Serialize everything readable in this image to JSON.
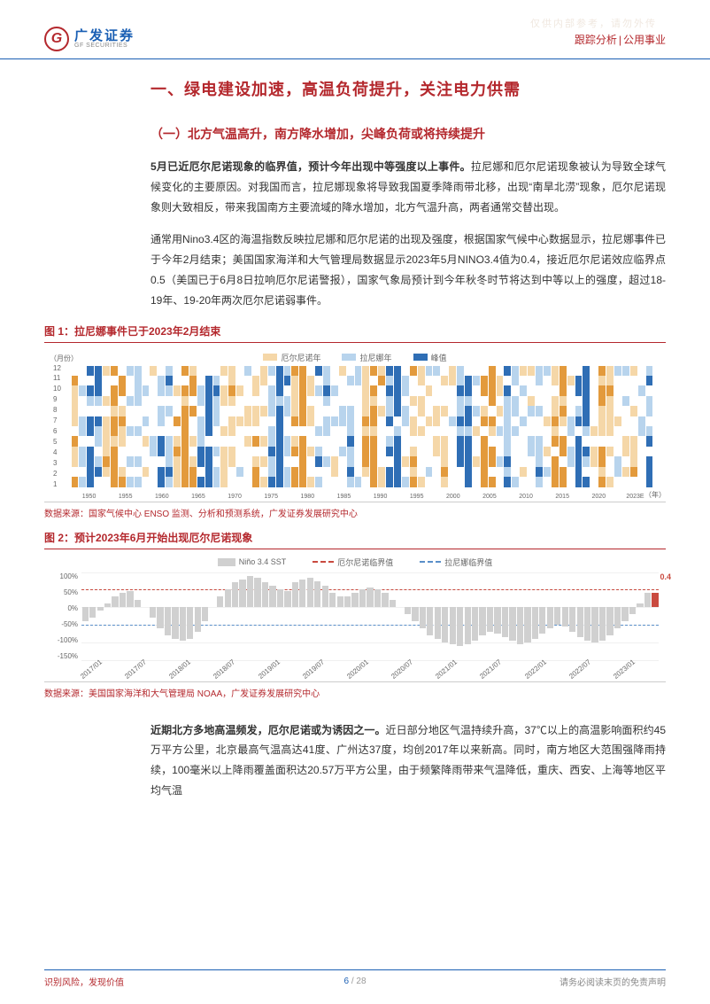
{
  "watermark": "仅供内部参考，请勿外传",
  "header": {
    "logo_cn": "广发证券",
    "logo_en": "GF SECURITIES",
    "logo_letter": "G",
    "category": "跟踪分析",
    "sector": "公用事业"
  },
  "h1": "一、绿电建设加速，高温负荷提升，关注电力供需",
  "h2": "（一）北方气温高升，南方降水增加，尖峰负荷或将持续提升",
  "p1_bold": "5月已近厄尔尼诺现象的临界值，预计今年出现中等强度以上事件。",
  "p1": "拉尼娜和厄尔尼诺现象被认为导致全球气候变化的主要原因。对我国而言，拉尼娜现象将导致我国夏季降雨带北移，出现“南旱北涝”现象，厄尔尼诺现象则大致相反，带来我国南方主要流域的降水增加，北方气温升高，两者通常交替出现。",
  "p2": "通常用Nino3.4区的海温指数反映拉尼娜和厄尔尼诺的出现及强度，根据国家气候中心数据显示，拉尼娜事件已于今年2月结束；美国国家海洋和大气管理局数据显示2023年5月NINO3.4值为0.4，接近厄尔尼诺效应临界点0.5（美国已于6月8日拉响厄尔尼诺警报），国家气象局预计到今年秋冬时节将达到中等以上的强度，超过18-19年、19-20年两次厄尔尼诺弱事件。",
  "fig1": {
    "title": "图 1：拉尼娜事件已于2023年2月结束",
    "ylabel": "（月份）",
    "xlabel": "（年）",
    "yticks": [
      "1",
      "2",
      "3",
      "4",
      "5",
      "6",
      "7",
      "8",
      "9",
      "10",
      "11",
      "12"
    ],
    "xticks": [
      "1950",
      "1955",
      "1960",
      "1965",
      "1970",
      "1975",
      "1980",
      "1985",
      "1990",
      "1995",
      "2000",
      "2005",
      "2010",
      "2015",
      "2020",
      "2023E"
    ],
    "legend": [
      {
        "label": "厄尔尼诺年",
        "color": "#f5d7a8"
      },
      {
        "label": "拉尼娜年",
        "color": "#b8d4ed"
      },
      {
        "label": "峰值",
        "color": "#2f6eb5"
      }
    ],
    "colors": {
      "none": "#ffffff",
      "en_light": "#f5d7a8",
      "en_dark": "#e39a3c",
      "ln_light": "#b8d4ed",
      "ln_dark": "#2f6eb5"
    },
    "source": "数据来源：国家气候中心 ENSO 监测、分析和预测系统，广发证券发展研究中心"
  },
  "fig2": {
    "title": "图 2：预计2023年6月开始出现厄尔尼诺现象",
    "legend": [
      {
        "label": "Niño 3.4 SST",
        "type": "box",
        "color": "#d0d0d0"
      },
      {
        "label": "厄尔尼诺临界值",
        "type": "line",
        "color": "#c94a3f"
      },
      {
        "label": "拉尼娜临界值",
        "type": "line",
        "color": "#5a8fc9"
      }
    ],
    "yticks": [
      "100%",
      "50%",
      "0%",
      "-50%",
      "-100%",
      "-150%"
    ],
    "ylim": [
      -150,
      100
    ],
    "threshold_en": 50,
    "threshold_ln": -50,
    "xticks": [
      "2017/01",
      "2017/07",
      "2018/01",
      "2018/07",
      "2019/01",
      "2019/07",
      "2020/01",
      "2020/07",
      "2021/01",
      "2021/07",
      "2022/01",
      "2022/07",
      "2023/01"
    ],
    "latest_label": "0.4",
    "latest_color": "#c94a3f",
    "bar_color": "#d0d0d0",
    "values": [
      -40,
      -30,
      -10,
      10,
      30,
      40,
      45,
      20,
      0,
      -30,
      -60,
      -80,
      -90,
      -95,
      -90,
      -70,
      -40,
      0,
      30,
      50,
      70,
      80,
      90,
      85,
      70,
      60,
      50,
      45,
      70,
      80,
      85,
      75,
      60,
      40,
      30,
      30,
      40,
      50,
      55,
      50,
      40,
      20,
      0,
      -20,
      -40,
      -60,
      -80,
      -90,
      -100,
      -105,
      -110,
      -105,
      -95,
      -80,
      -70,
      -75,
      -85,
      -95,
      -105,
      -100,
      -90,
      -75,
      -60,
      -50,
      -55,
      -70,
      -85,
      -95,
      -100,
      -95,
      -80,
      -60,
      -40,
      -20,
      10,
      40,
      40
    ],
    "source": "数据来源：美国国家海洋和大气管理局 NOAA，广发证券发展研究中心"
  },
  "p3_bold": "近期北方多地高温频发，厄尔尼诺或为诱因之一。",
  "p3": "近日部分地区气温持续升高，37℃以上的高温影响面积约45万平方公里，北京最高气温高达41度、广州达37度，均创2017年以来新高。同时，南方地区大范围强降雨持续，100毫米以上降雨覆盖面积达20.57万平方公里，由于频繁降雨带来气温降低，重庆、西安、上海等地区平均气温",
  "footer": {
    "left": "识别风险，发现价值",
    "right": "请务必阅读末页的免责声明",
    "page": "6",
    "total": "/ 28"
  }
}
